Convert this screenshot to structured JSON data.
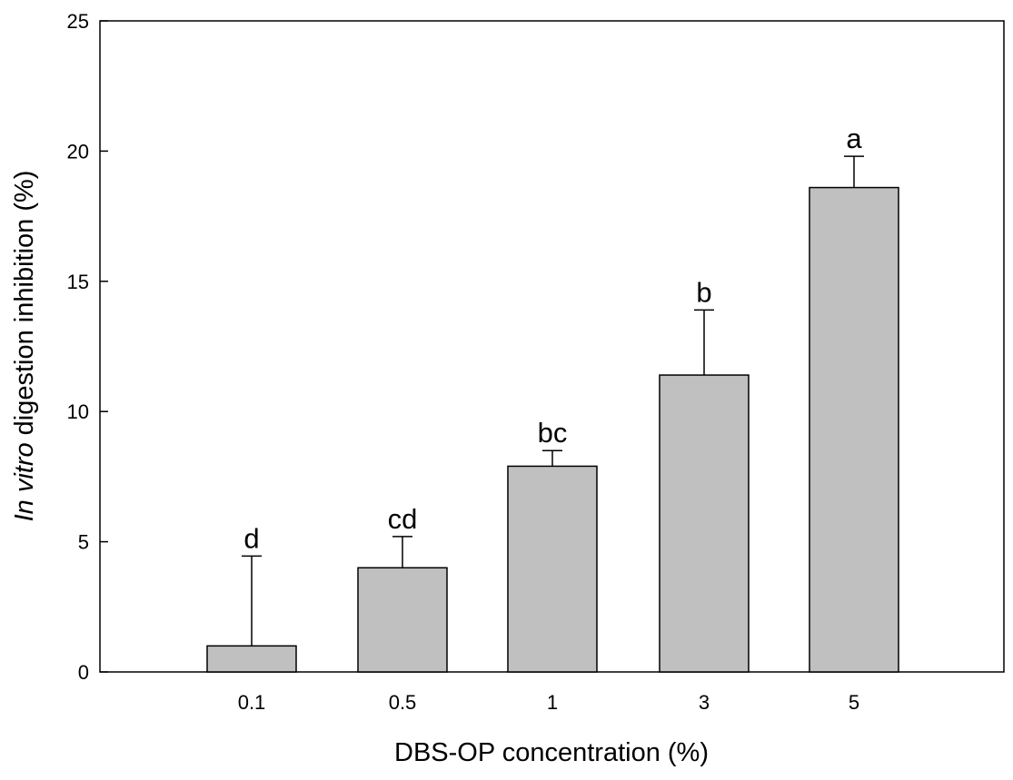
{
  "chart_data": {
    "type": "bar",
    "categories": [
      "0.1",
      "0.5",
      "1",
      "3",
      "5"
    ],
    "values": [
      1.0,
      4.0,
      7.9,
      11.4,
      18.6
    ],
    "error_upper": [
      4.45,
      5.2,
      8.5,
      13.9,
      19.8
    ],
    "significance_letters": [
      "d",
      "cd",
      "bc",
      "b",
      "a"
    ],
    "xlabel": "DBS-OP concentration (%)",
    "ylabel_italic": "In vitro",
    "ylabel_rest": " digestion inhibition (%)",
    "ylim": [
      0,
      25
    ],
    "yticks": [
      "0",
      "5",
      "10",
      "15",
      "20",
      "25"
    ],
    "grid": false,
    "legend": "none",
    "bar_color": "#c0c0c0",
    "edge_color": "#000000"
  }
}
